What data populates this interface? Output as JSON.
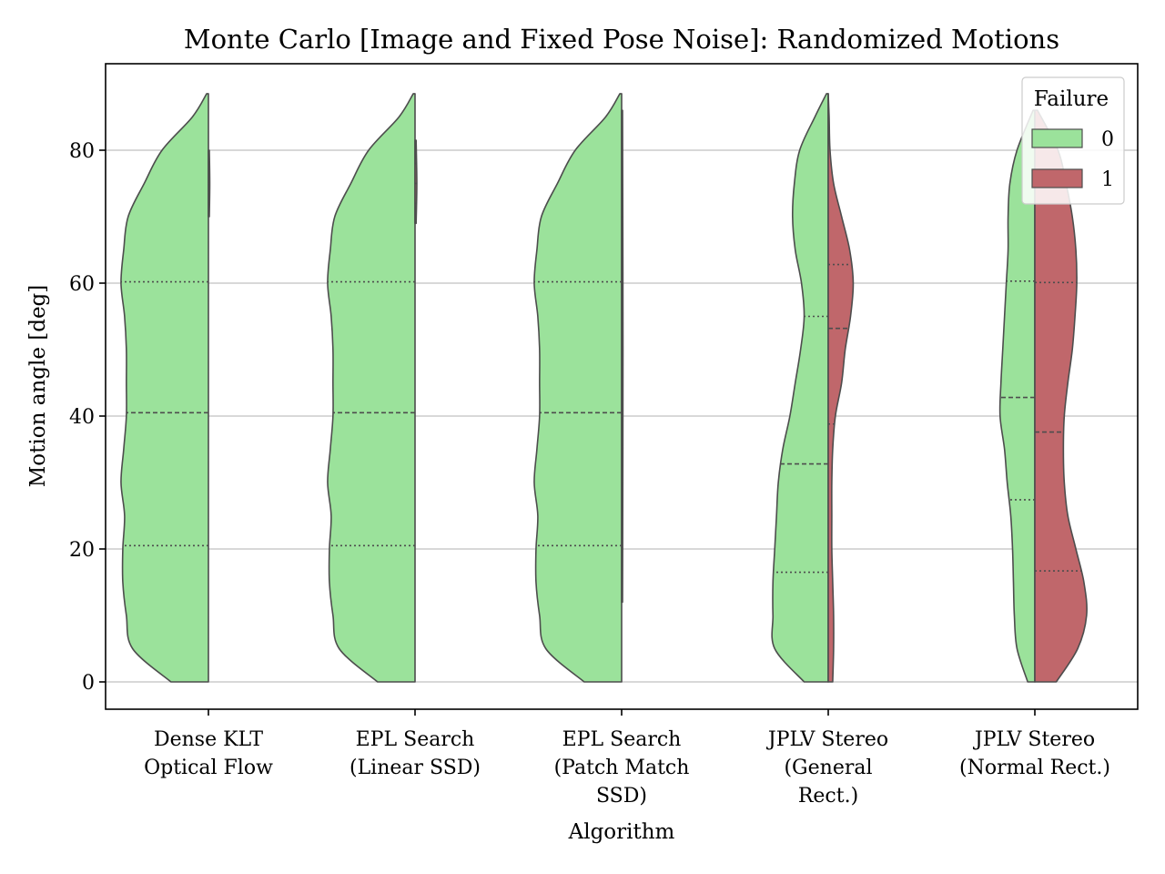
{
  "chart_data": {
    "type": "violin",
    "title": "Monte Carlo [Image and Fixed Pose Noise]: Randomized Motions",
    "xlabel": "Algorithm",
    "ylabel": "Motion angle [deg]",
    "ylim": [
      -4.3,
      92.5
    ],
    "yticks": [
      0,
      20,
      40,
      60,
      80
    ],
    "grid": "y",
    "categories": [
      [
        "Dense KLT",
        "Optical Flow"
      ],
      [
        "EPL Search",
        "(Linear SSD)"
      ],
      [
        "EPL Search",
        "(Patch Match",
        "SSD)"
      ],
      [
        "JPLV Stereo",
        "(General",
        "Rect.)"
      ],
      [
        "JPLV Stereo",
        "(Normal Rect.)"
      ]
    ],
    "legend": {
      "title": "Failure",
      "placement": "top-right",
      "entries": [
        {
          "label": "0",
          "color": "#9be29b"
        },
        {
          "label": "1",
          "color": "#c0676b"
        }
      ]
    },
    "series": [
      {
        "name": "0",
        "side": "left",
        "color": "#9be29b",
        "groups": [
          {
            "ymin": 0,
            "ymax": 88.5,
            "q1": 20.5,
            "median": 40.5,
            "q3": 60.2,
            "profile": [
              [
                0,
                0.42
              ],
              [
                5,
                0.85
              ],
              [
                10,
                0.92
              ],
              [
                15,
                0.96
              ],
              [
                20,
                0.96
              ],
              [
                25,
                0.94
              ],
              [
                30,
                0.98
              ],
              [
                35,
                0.95
              ],
              [
                40,
                0.92
              ],
              [
                45,
                0.92
              ],
              [
                50,
                0.92
              ],
              [
                55,
                0.94
              ],
              [
                60,
                0.98
              ],
              [
                65,
                0.95
              ],
              [
                70,
                0.9
              ],
              [
                75,
                0.72
              ],
              [
                80,
                0.52
              ],
              [
                85,
                0.18
              ],
              [
                88.5,
                0.02
              ]
            ]
          },
          {
            "ymin": 0,
            "ymax": 88.5,
            "q1": 20.5,
            "median": 40.5,
            "q3": 60.2,
            "profile": [
              [
                0,
                0.42
              ],
              [
                5,
                0.85
              ],
              [
                10,
                0.92
              ],
              [
                15,
                0.96
              ],
              [
                20,
                0.96
              ],
              [
                25,
                0.94
              ],
              [
                30,
                0.98
              ],
              [
                35,
                0.95
              ],
              [
                40,
                0.92
              ],
              [
                45,
                0.92
              ],
              [
                50,
                0.92
              ],
              [
                55,
                0.94
              ],
              [
                60,
                0.98
              ],
              [
                65,
                0.95
              ],
              [
                70,
                0.9
              ],
              [
                75,
                0.72
              ],
              [
                80,
                0.52
              ],
              [
                85,
                0.18
              ],
              [
                88.5,
                0.02
              ]
            ]
          },
          {
            "ymin": 0,
            "ymax": 88.5,
            "q1": 20.5,
            "median": 40.5,
            "q3": 60.2,
            "profile": [
              [
                0,
                0.42
              ],
              [
                5,
                0.85
              ],
              [
                10,
                0.92
              ],
              [
                15,
                0.96
              ],
              [
                20,
                0.96
              ],
              [
                25,
                0.94
              ],
              [
                30,
                0.98
              ],
              [
                35,
                0.95
              ],
              [
                40,
                0.92
              ],
              [
                45,
                0.92
              ],
              [
                50,
                0.92
              ],
              [
                55,
                0.94
              ],
              [
                60,
                0.98
              ],
              [
                65,
                0.95
              ],
              [
                70,
                0.9
              ],
              [
                75,
                0.72
              ],
              [
                80,
                0.52
              ],
              [
                85,
                0.18
              ],
              [
                88.5,
                0.02
              ]
            ]
          },
          {
            "ymin": 0,
            "ymax": 88.5,
            "q1": 16.5,
            "median": 32.8,
            "q3": 55.0,
            "profile": [
              [
                0,
                0.27
              ],
              [
                5,
                0.6
              ],
              [
                10,
                0.62
              ],
              [
                15,
                0.62
              ],
              [
                20,
                0.6
              ],
              [
                25,
                0.58
              ],
              [
                30,
                0.56
              ],
              [
                35,
                0.51
              ],
              [
                40,
                0.43
              ],
              [
                45,
                0.37
              ],
              [
                50,
                0.31
              ],
              [
                55,
                0.27
              ],
              [
                60,
                0.3
              ],
              [
                65,
                0.37
              ],
              [
                70,
                0.4
              ],
              [
                75,
                0.38
              ],
              [
                80,
                0.32
              ],
              [
                85,
                0.15
              ],
              [
                88.5,
                0.02
              ]
            ]
          },
          {
            "ymin": 0,
            "ymax": 86,
            "q1": 27.4,
            "median": 42.8,
            "q3": 60.3,
            "profile": [
              [
                0,
                0.08
              ],
              [
                5,
                0.2
              ],
              [
                10,
                0.23
              ],
              [
                15,
                0.24
              ],
              [
                20,
                0.25
              ],
              [
                25,
                0.27
              ],
              [
                30,
                0.31
              ],
              [
                35,
                0.34
              ],
              [
                40,
                0.39
              ],
              [
                45,
                0.38
              ],
              [
                50,
                0.36
              ],
              [
                55,
                0.34
              ],
              [
                60,
                0.32
              ],
              [
                65,
                0.3
              ],
              [
                70,
                0.3
              ],
              [
                75,
                0.28
              ],
              [
                80,
                0.2
              ],
              [
                86,
                0.02
              ]
            ]
          }
        ]
      },
      {
        "name": "1",
        "side": "right",
        "color": "#c0676b",
        "groups": [
          {
            "ymin": 70,
            "ymax": 80,
            "q1": 72,
            "median": 75,
            "q3": 78,
            "profile": [
              [
                70,
                0.01
              ],
              [
                75,
                0.015
              ],
              [
                80,
                0.01
              ]
            ]
          },
          {
            "ymin": 69,
            "ymax": 81.5,
            "q1": 72,
            "median": 75,
            "q3": 78,
            "profile": [
              [
                69,
                0.012
              ],
              [
                75,
                0.02
              ],
              [
                81.5,
                0.012
              ]
            ]
          },
          {
            "ymin": 12,
            "ymax": 86,
            "q1": 30,
            "median": 50,
            "q3": 70,
            "profile": [
              [
                12,
                0.01
              ],
              [
                50,
                0.015
              ],
              [
                86,
                0.01
              ]
            ]
          },
          {
            "ymin": 0,
            "ymax": 88.5,
            "q1": 38.8,
            "median": 53.2,
            "q3": 62.8,
            "profile": [
              [
                0,
                0.05
              ],
              [
                5,
                0.06
              ],
              [
                10,
                0.06
              ],
              [
                15,
                0.05
              ],
              [
                20,
                0.04
              ],
              [
                25,
                0.04
              ],
              [
                30,
                0.04
              ],
              [
                35,
                0.05
              ],
              [
                40,
                0.08
              ],
              [
                45,
                0.15
              ],
              [
                50,
                0.19
              ],
              [
                55,
                0.25
              ],
              [
                60,
                0.28
              ],
              [
                65,
                0.24
              ],
              [
                70,
                0.15
              ],
              [
                75,
                0.06
              ],
              [
                80,
                0.02
              ],
              [
                85,
                0.01
              ],
              [
                88.5,
                0.0
              ]
            ]
          },
          {
            "ymin": 0,
            "ymax": 86,
            "q1": 16.7,
            "median": 37.6,
            "q3": 60.1,
            "profile": [
              [
                0,
                0.24
              ],
              [
                5,
                0.48
              ],
              [
                10,
                0.58
              ],
              [
                15,
                0.55
              ],
              [
                20,
                0.46
              ],
              [
                25,
                0.37
              ],
              [
                30,
                0.33
              ],
              [
                35,
                0.32
              ],
              [
                40,
                0.33
              ],
              [
                45,
                0.37
              ],
              [
                50,
                0.42
              ],
              [
                55,
                0.45
              ],
              [
                60,
                0.47
              ],
              [
                65,
                0.46
              ],
              [
                70,
                0.42
              ],
              [
                75,
                0.35
              ],
              [
                80,
                0.26
              ],
              [
                86,
                0.03
              ]
            ]
          }
        ]
      }
    ]
  }
}
